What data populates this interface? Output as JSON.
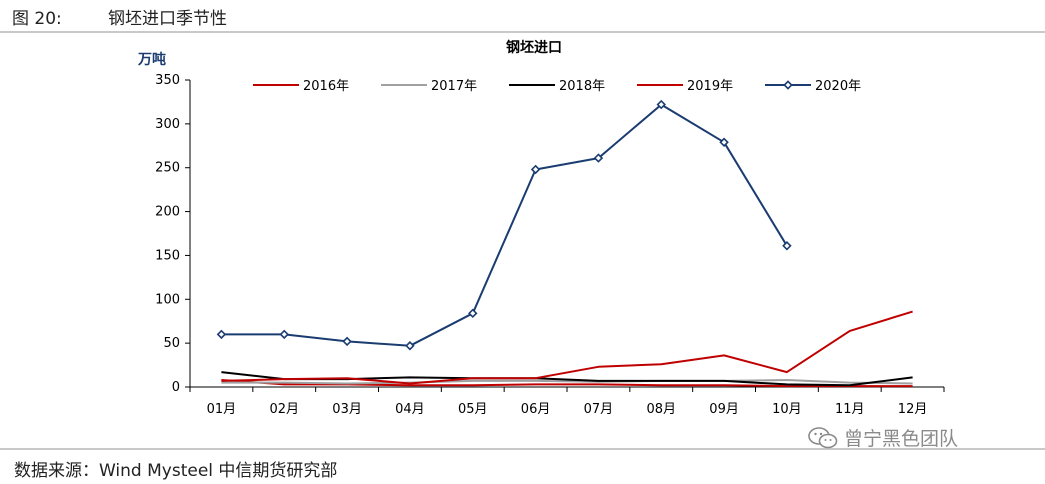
{
  "figure": {
    "number": "图 20:",
    "title": "钢坯进口季节性",
    "source": "数据来源：Wind Mysteel 中信期货研究部",
    "watermark": "曾宁黑色团队",
    "watermark_icon": "wechat-icon"
  },
  "chart_data": {
    "type": "line",
    "title": "钢坯进口",
    "ylabel": "万吨",
    "xlabel": "",
    "ylim": [
      0,
      350
    ],
    "yticks": [
      0,
      50,
      100,
      150,
      200,
      250,
      300,
      350
    ],
    "categories": [
      "01月",
      "02月",
      "03月",
      "04月",
      "05月",
      "06月",
      "07月",
      "08月",
      "09月",
      "10月",
      "11月",
      "12月"
    ],
    "grid": false,
    "legend_position": "top",
    "series": [
      {
        "name": "2016年",
        "color": "#c00000",
        "marker": "none",
        "values": [
          8,
          3,
          3,
          2,
          2,
          3,
          3,
          2,
          2,
          1,
          1,
          1
        ]
      },
      {
        "name": "2017年",
        "color": "#a0a0a0",
        "marker": "none",
        "values": [
          5,
          5,
          4,
          5,
          7,
          7,
          6,
          7,
          7,
          8,
          5,
          4
        ]
      },
      {
        "name": "2018年",
        "color": "#000000",
        "marker": "none",
        "values": [
          17,
          9,
          9,
          11,
          10,
          10,
          7,
          7,
          7,
          3,
          2,
          11
        ]
      },
      {
        "name": "2019年",
        "color": "#c00000",
        "marker": "none",
        "values": [
          7,
          9,
          10,
          4,
          10,
          10,
          23,
          26,
          36,
          17,
          64,
          86
        ]
      },
      {
        "name": "2020年",
        "color": "#1a3c70",
        "marker": "diamond",
        "values": [
          60,
          60,
          52,
          47,
          84,
          248,
          261,
          322,
          279,
          161,
          null,
          null
        ]
      }
    ]
  }
}
